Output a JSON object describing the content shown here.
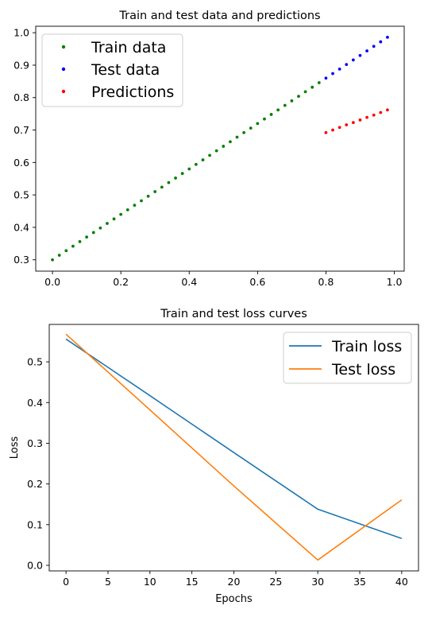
{
  "chart_data": [
    {
      "type": "scatter",
      "title": "Train and test data and predictions",
      "xlabel": "",
      "ylabel": "",
      "xlim": [
        -0.049,
        1.029
      ],
      "ylim": [
        0.265,
        1.02
      ],
      "xticks": [
        "0.0",
        "0.2",
        "0.4",
        "0.6",
        "0.8",
        "1.0"
      ],
      "yticks": [
        "0.3",
        "0.4",
        "0.5",
        "0.6",
        "0.7",
        "0.8",
        "0.9",
        "1.0"
      ],
      "legend_position": "upper-left",
      "grid": false,
      "series": [
        {
          "name": "Train data",
          "color": "#008000",
          "x": [
            0.0,
            0.02,
            0.04,
            0.06,
            0.08,
            0.1,
            0.12,
            0.14,
            0.16,
            0.18,
            0.2,
            0.22,
            0.24,
            0.26,
            0.28,
            0.3,
            0.32,
            0.34,
            0.36,
            0.38,
            0.4,
            0.42,
            0.44,
            0.46,
            0.48,
            0.5,
            0.52,
            0.54,
            0.56,
            0.58,
            0.6,
            0.62,
            0.64,
            0.66,
            0.68,
            0.7,
            0.72,
            0.74,
            0.76,
            0.78
          ],
          "y": [
            0.3,
            0.314,
            0.328,
            0.342,
            0.356,
            0.37,
            0.384,
            0.398,
            0.412,
            0.426,
            0.44,
            0.454,
            0.468,
            0.482,
            0.496,
            0.51,
            0.524,
            0.538,
            0.552,
            0.566,
            0.58,
            0.594,
            0.608,
            0.622,
            0.636,
            0.65,
            0.664,
            0.678,
            0.692,
            0.706,
            0.72,
            0.734,
            0.748,
            0.762,
            0.776,
            0.79,
            0.804,
            0.818,
            0.832,
            0.846
          ]
        },
        {
          "name": "Test data",
          "color": "#0000ff",
          "x": [
            0.8,
            0.82,
            0.84,
            0.86,
            0.88,
            0.9,
            0.92,
            0.94,
            0.96,
            0.98
          ],
          "y": [
            0.86,
            0.874,
            0.888,
            0.902,
            0.916,
            0.93,
            0.944,
            0.958,
            0.972,
            0.986
          ]
        },
        {
          "name": "Predictions",
          "color": "#ff0000",
          "x": [
            0.8,
            0.82,
            0.84,
            0.86,
            0.88,
            0.9,
            0.92,
            0.94,
            0.96,
            0.98
          ],
          "y": [
            0.692,
            0.7,
            0.708,
            0.716,
            0.723,
            0.731,
            0.739,
            0.746,
            0.754,
            0.762
          ]
        }
      ]
    },
    {
      "type": "line",
      "title": "Train and test loss curves",
      "xlabel": "Epochs",
      "ylabel": "Loss",
      "xlim": [
        -2,
        42
      ],
      "ylim": [
        -0.0137,
        0.592
      ],
      "xticks": [
        "0",
        "5",
        "10",
        "15",
        "20",
        "25",
        "30",
        "35",
        "40"
      ],
      "yticks": [
        "0.0",
        "0.1",
        "0.2",
        "0.3",
        "0.4",
        "0.5"
      ],
      "legend_position": "upper-right",
      "grid": false,
      "series": [
        {
          "name": "Train loss",
          "color": "#1f77b4",
          "x": [
            0,
            10,
            20,
            30,
            40
          ],
          "y": [
            0.556,
            0.417,
            0.277,
            0.138,
            0.066
          ]
        },
        {
          "name": "Test loss",
          "color": "#ff7f0e",
          "x": [
            0,
            10,
            20,
            30,
            40
          ],
          "y": [
            0.568,
            0.382,
            0.195,
            0.013,
            0.161
          ]
        }
      ]
    }
  ]
}
